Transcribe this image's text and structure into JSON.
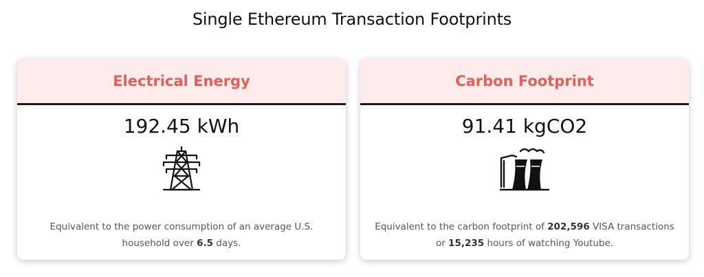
{
  "page": {
    "title": "Single Ethereum Transaction Footprints"
  },
  "energy_card": {
    "header": "Electrical Energy",
    "value": "192.45 kWh",
    "icon": "power-tower-icon",
    "desc_prefix": "Equivalent to the power consumption of an average U.S. household over ",
    "desc_days": "6.5",
    "desc_suffix": " days."
  },
  "carbon_card": {
    "header": "Carbon Footprint",
    "value": "91.41 kgCO2",
    "icon": "factory-smoke-icon",
    "desc_prefix": "Equivalent to the carbon footprint of ",
    "desc_visa": "202,596",
    "desc_middle": " VISA transactions or ",
    "desc_hours": "15,235",
    "desc_suffix": " hours of watching Youtube."
  },
  "colors": {
    "header_bg": "#fdeceb",
    "header_text": "#e0605a",
    "divider": "#1a1a1a"
  }
}
